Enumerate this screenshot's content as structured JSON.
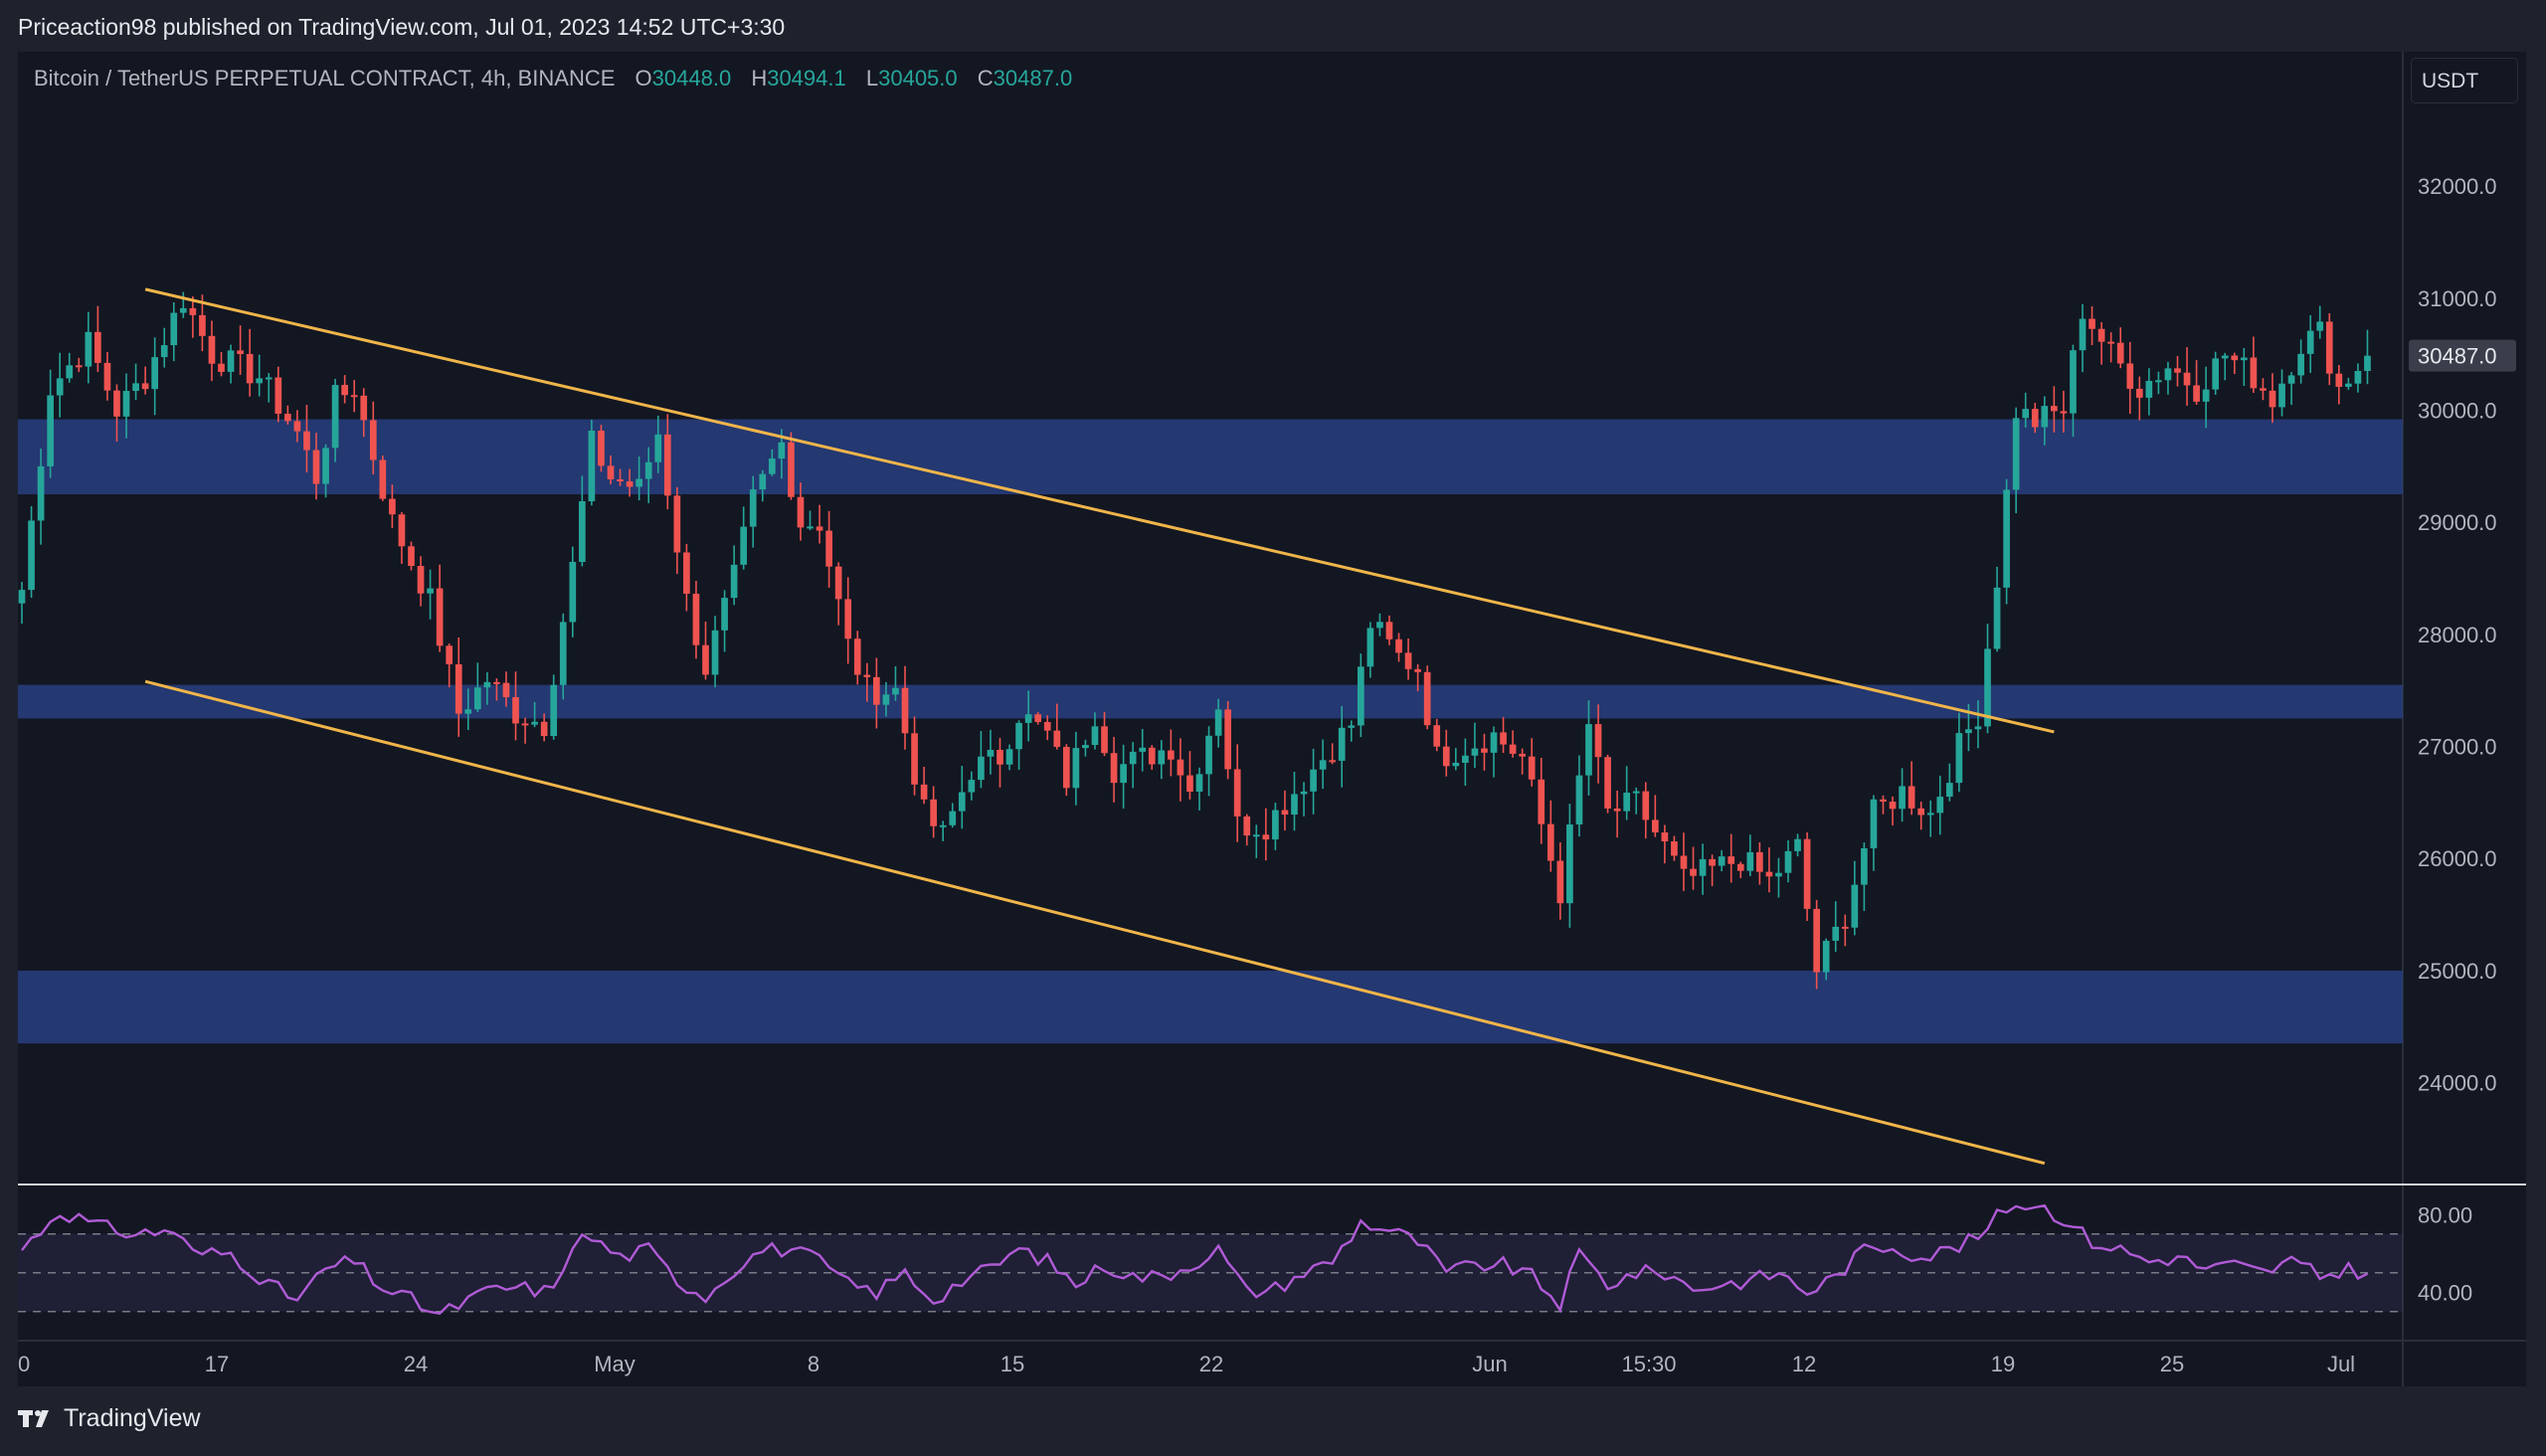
{
  "header": {
    "published": "Priceaction98 published on TradingView.com, Jul 01, 2023 14:52 UTC+3:30"
  },
  "legend": {
    "symbol": "Bitcoin / TetherUS PERPETUAL CONTRACT, 4h, BINANCE",
    "o_label": "O",
    "o_value": "30448.0",
    "h_label": "H",
    "h_value": "30494.1",
    "l_label": "L",
    "l_value": "30405.0",
    "c_label": "C",
    "c_value": "30487.0"
  },
  "currency": "USDT",
  "footer": {
    "brand": "TradingView"
  },
  "colors": {
    "up": "#26a69a",
    "down": "#ef5350",
    "zone": "#283f82",
    "trendline": "#f0b54a",
    "rsi": "#b05bd6",
    "background": "#131722",
    "grid_text": "#b2b5be"
  },
  "chart_data": [
    {
      "type": "candlestick",
      "interval": "4h",
      "x_tick_labels": [
        "0",
        "17",
        "24",
        "May",
        "8",
        "15",
        "22",
        "Jun",
        "15:30",
        "12",
        "19",
        "25",
        "Jul"
      ],
      "y_tick_labels": [
        "32000.0",
        "31000.0",
        "30000.0",
        "29000.0",
        "28000.0",
        "27000.0",
        "26000.0",
        "25000.0",
        "24000.0"
      ],
      "ylim": [
        23100,
        33200
      ],
      "last_price": "30487.0",
      "close_path": [
        [
          0,
          28400
        ],
        [
          3,
          30200
        ],
        [
          7,
          30600
        ],
        [
          10,
          30000
        ],
        [
          13,
          30300
        ],
        [
          17,
          31000
        ],
        [
          20,
          30500
        ],
        [
          25,
          30300
        ],
        [
          29,
          29800
        ],
        [
          31,
          29400
        ],
        [
          33,
          30100
        ],
        [
          35,
          30200
        ],
        [
          39,
          29000
        ],
        [
          43,
          28300
        ],
        [
          46,
          27300
        ],
        [
          49,
          27600
        ],
        [
          52,
          27300
        ],
        [
          55,
          27200
        ],
        [
          58,
          28600
        ],
        [
          60,
          29700
        ],
        [
          62,
          29400
        ],
        [
          65,
          29300
        ],
        [
          67,
          29800
        ],
        [
          70,
          28300
        ],
        [
          72,
          27700
        ],
        [
          75,
          28500
        ],
        [
          77,
          29200
        ],
        [
          80,
          29700
        ],
        [
          82,
          29000
        ],
        [
          84,
          29000
        ],
        [
          87,
          27900
        ],
        [
          89,
          27500
        ],
        [
          92,
          27500
        ],
        [
          95,
          26400
        ],
        [
          97,
          26200
        ],
        [
          100,
          26800
        ],
        [
          103,
          26900
        ],
        [
          105,
          27300
        ],
        [
          108,
          27100
        ],
        [
          110,
          26700
        ],
        [
          113,
          27300
        ],
        [
          115,
          26800
        ],
        [
          118,
          26900
        ],
        [
          121,
          27000
        ],
        [
          123,
          26600
        ],
        [
          126,
          27400
        ],
        [
          128,
          26300
        ],
        [
          131,
          26300
        ],
        [
          134,
          26600
        ],
        [
          137,
          26900
        ],
        [
          140,
          27200
        ],
        [
          142,
          28100
        ],
        [
          145,
          27800
        ],
        [
          147,
          27700
        ],
        [
          149,
          26900
        ],
        [
          152,
          27000
        ],
        [
          155,
          27100
        ],
        [
          158,
          26900
        ],
        [
          160,
          26300
        ],
        [
          162,
          25700
        ],
        [
          165,
          27200
        ],
        [
          167,
          26400
        ],
        [
          170,
          26500
        ],
        [
          173,
          26100
        ],
        [
          175,
          25800
        ],
        [
          178,
          25900
        ],
        [
          181,
          26000
        ],
        [
          184,
          25800
        ],
        [
          187,
          26100
        ],
        [
          189,
          25000
        ],
        [
          192,
          25500
        ],
        [
          195,
          26400
        ],
        [
          198,
          26600
        ],
        [
          201,
          26400
        ],
        [
          204,
          27000
        ],
        [
          206,
          27300
        ],
        [
          208,
          28500
        ],
        [
          210,
          30000
        ],
        [
          212,
          29900
        ],
        [
          215,
          30000
        ],
        [
          217,
          30900
        ],
        [
          220,
          30500
        ],
        [
          223,
          30200
        ],
        [
          226,
          30400
        ],
        [
          229,
          30200
        ],
        [
          232,
          30500
        ],
        [
          235,
          30300
        ],
        [
          237,
          30100
        ],
        [
          240,
          30600
        ],
        [
          242,
          30700
        ],
        [
          244,
          30200
        ],
        [
          247,
          30487
        ]
      ],
      "zones": [
        [
          29250,
          29920
        ],
        [
          27250,
          27550
        ],
        [
          24350,
          25000
        ]
      ],
      "channel_upper": [
        [
          13,
          31080
        ],
        [
          214,
          27130
        ]
      ],
      "channel_lower": [
        [
          13,
          27580
        ],
        [
          213,
          23280
        ]
      ]
    },
    {
      "type": "line",
      "name": "RSI",
      "y_tick_labels": [
        "80.00",
        "40.00"
      ],
      "bands": [
        70,
        50,
        30
      ],
      "ylim": [
        15,
        95
      ],
      "values": [
        [
          0,
          62
        ],
        [
          4,
          82
        ],
        [
          8,
          74
        ],
        [
          12,
          70
        ],
        [
          16,
          72
        ],
        [
          18,
          60
        ],
        [
          22,
          60
        ],
        [
          26,
          44
        ],
        [
          29,
          36
        ],
        [
          32,
          52
        ],
        [
          35,
          56
        ],
        [
          38,
          42
        ],
        [
          41,
          36
        ],
        [
          44,
          28
        ],
        [
          47,
          36
        ],
        [
          50,
          42
        ],
        [
          53,
          42
        ],
        [
          56,
          40
        ],
        [
          58,
          66
        ],
        [
          60,
          68
        ],
        [
          63,
          58
        ],
        [
          66,
          62
        ],
        [
          69,
          46
        ],
        [
          72,
          38
        ],
        [
          75,
          52
        ],
        [
          78,
          62
        ],
        [
          81,
          62
        ],
        [
          84,
          56
        ],
        [
          87,
          44
        ],
        [
          90,
          40
        ],
        [
          93,
          50
        ],
        [
          96,
          36
        ],
        [
          99,
          46
        ],
        [
          102,
          52
        ],
        [
          105,
          62
        ],
        [
          108,
          56
        ],
        [
          111,
          44
        ],
        [
          114,
          54
        ],
        [
          117,
          48
        ],
        [
          120,
          48
        ],
        [
          123,
          54
        ],
        [
          126,
          62
        ],
        [
          129,
          40
        ],
        [
          132,
          42
        ],
        [
          135,
          50
        ],
        [
          138,
          56
        ],
        [
          141,
          76
        ],
        [
          144,
          72
        ],
        [
          147,
          66
        ],
        [
          150,
          50
        ],
        [
          153,
          54
        ],
        [
          156,
          54
        ],
        [
          159,
          48
        ],
        [
          162,
          34
        ],
        [
          164,
          60
        ],
        [
          167,
          44
        ],
        [
          170,
          50
        ],
        [
          173,
          50
        ],
        [
          176,
          42
        ],
        [
          179,
          44
        ],
        [
          182,
          46
        ],
        [
          185,
          50
        ],
        [
          188,
          40
        ],
        [
          191,
          48
        ],
        [
          194,
          62
        ],
        [
          197,
          64
        ],
        [
          200,
          58
        ],
        [
          203,
          62
        ],
        [
          206,
          68
        ],
        [
          209,
          84
        ],
        [
          212,
          86
        ],
        [
          215,
          78
        ],
        [
          218,
          66
        ],
        [
          221,
          62
        ],
        [
          224,
          56
        ],
        [
          227,
          58
        ],
        [
          230,
          52
        ],
        [
          233,
          54
        ],
        [
          236,
          50
        ],
        [
          239,
          56
        ],
        [
          242,
          48
        ],
        [
          245,
          52
        ],
        [
          247,
          50
        ]
      ]
    }
  ]
}
